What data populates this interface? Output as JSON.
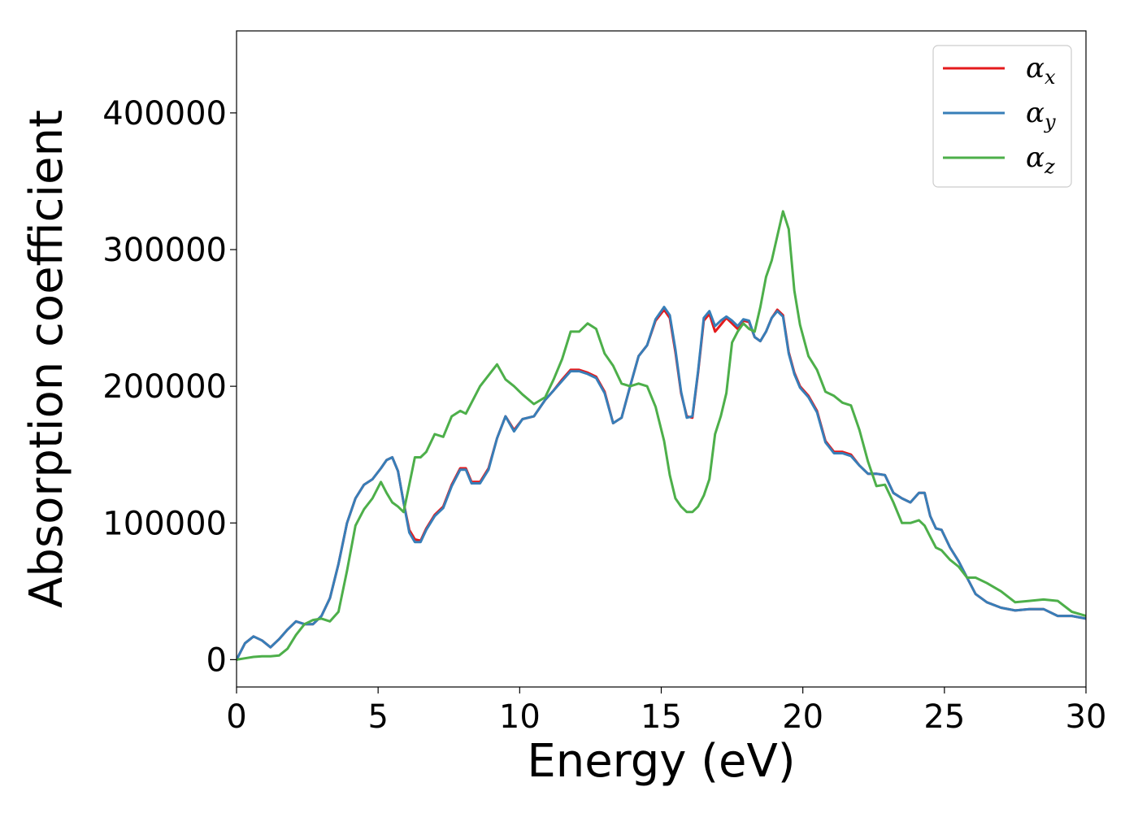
{
  "chart_data": {
    "type": "line",
    "title": "",
    "xlabel": "Energy (eV)",
    "ylabel": "Absorption coefficient",
    "xlim": [
      0,
      30
    ],
    "ylim": [
      -20000,
      460000
    ],
    "xticks": [
      0,
      5,
      10,
      15,
      20,
      25,
      30
    ],
    "yticks": [
      0,
      100000,
      200000,
      300000,
      400000
    ],
    "grid": false,
    "legend_position": "top-right",
    "series": [
      {
        "name": "α",
        "subscript": "x",
        "color": "#e41a1c",
        "x": [
          0,
          0.3,
          0.6,
          0.9,
          1.2,
          1.5,
          1.8,
          2.1,
          2.4,
          2.7,
          3.0,
          3.3,
          3.6,
          3.9,
          4.2,
          4.5,
          4.8,
          5.1,
          5.3,
          5.5,
          5.7,
          5.9,
          6.1,
          6.3,
          6.5,
          6.7,
          7.0,
          7.3,
          7.6,
          7.9,
          8.1,
          8.3,
          8.6,
          8.9,
          9.2,
          9.5,
          9.8,
          10.1,
          10.5,
          10.9,
          11.2,
          11.5,
          11.8,
          12.1,
          12.4,
          12.7,
          13.0,
          13.3,
          13.6,
          13.9,
          14.2,
          14.5,
          14.8,
          15.1,
          15.3,
          15.5,
          15.7,
          15.9,
          16.1,
          16.3,
          16.5,
          16.7,
          16.9,
          17.1,
          17.3,
          17.5,
          17.7,
          17.9,
          18.1,
          18.3,
          18.5,
          18.7,
          18.9,
          19.1,
          19.3,
          19.5,
          19.7,
          19.9,
          20.2,
          20.5,
          20.8,
          21.1,
          21.4,
          21.7,
          22.0,
          22.3,
          22.6,
          22.9,
          23.2,
          23.5,
          23.8,
          24.1,
          24.3,
          24.5,
          24.7,
          24.9,
          25.2,
          25.5,
          25.8,
          26.1,
          26.5,
          27.0,
          27.5,
          28.0,
          28.5,
          29.0,
          29.5,
          30.0
        ],
        "values": [
          0,
          12000,
          17000,
          14000,
          9000,
          15000,
          22000,
          28000,
          26000,
          26000,
          32000,
          45000,
          70000,
          100000,
          118000,
          128000,
          132000,
          140000,
          146000,
          148000,
          138000,
          115000,
          95000,
          88000,
          87000,
          96000,
          106000,
          112000,
          128000,
          140000,
          140000,
          130000,
          130000,
          140000,
          162000,
          178000,
          168000,
          176000,
          178000,
          190000,
          197000,
          205000,
          212000,
          212000,
          210000,
          207000,
          196000,
          173000,
          177000,
          200000,
          222000,
          230000,
          248000,
          256000,
          250000,
          225000,
          195000,
          178000,
          177000,
          210000,
          248000,
          253000,
          240000,
          245000,
          250000,
          246000,
          242000,
          248000,
          247000,
          236000,
          233000,
          240000,
          250000,
          256000,
          252000,
          225000,
          210000,
          200000,
          193000,
          182000,
          160000,
          152000,
          152000,
          150000,
          142000,
          136000,
          136000,
          135000,
          122000,
          118000,
          115000,
          122000,
          122000,
          105000,
          96000,
          95000,
          82000,
          72000,
          60000,
          48000,
          42000,
          38000,
          36000,
          37000,
          37000,
          32000,
          32000,
          30000
        ]
      },
      {
        "name": "α",
        "subscript": "y",
        "color": "#377eb8",
        "x": [
          0,
          0.3,
          0.6,
          0.9,
          1.2,
          1.5,
          1.8,
          2.1,
          2.4,
          2.7,
          3.0,
          3.3,
          3.6,
          3.9,
          4.2,
          4.5,
          4.8,
          5.1,
          5.3,
          5.5,
          5.7,
          5.9,
          6.1,
          6.3,
          6.5,
          6.7,
          7.0,
          7.3,
          7.6,
          7.9,
          8.1,
          8.3,
          8.6,
          8.9,
          9.2,
          9.5,
          9.8,
          10.1,
          10.5,
          10.9,
          11.2,
          11.5,
          11.8,
          12.1,
          12.4,
          12.7,
          13.0,
          13.3,
          13.6,
          13.9,
          14.2,
          14.5,
          14.8,
          15.1,
          15.3,
          15.5,
          15.7,
          15.9,
          16.1,
          16.3,
          16.5,
          16.7,
          16.9,
          17.1,
          17.3,
          17.5,
          17.7,
          17.9,
          18.1,
          18.3,
          18.5,
          18.7,
          18.9,
          19.1,
          19.3,
          19.5,
          19.7,
          19.9,
          20.2,
          20.5,
          20.8,
          21.1,
          21.4,
          21.7,
          22.0,
          22.3,
          22.6,
          22.9,
          23.2,
          23.5,
          23.8,
          24.1,
          24.3,
          24.5,
          24.7,
          24.9,
          25.2,
          25.5,
          25.8,
          26.1,
          26.5,
          27.0,
          27.5,
          28.0,
          28.5,
          29.0,
          29.5,
          30.0
        ],
        "values": [
          0,
          12000,
          17000,
          14000,
          9000,
          15000,
          22000,
          28000,
          26000,
          26000,
          32000,
          45000,
          70000,
          100000,
          118000,
          128000,
          132000,
          140000,
          146000,
          148000,
          138000,
          115000,
          93000,
          86000,
          86000,
          95000,
          105000,
          111000,
          127000,
          139000,
          139000,
          129000,
          129000,
          139000,
          162000,
          178000,
          167000,
          176000,
          178000,
          190000,
          197000,
          204000,
          211000,
          211000,
          209000,
          206000,
          195000,
          173000,
          177000,
          200000,
          222000,
          230000,
          249000,
          258000,
          252000,
          227000,
          196000,
          177000,
          178000,
          211000,
          250000,
          255000,
          244000,
          248000,
          251000,
          248000,
          244000,
          249000,
          248000,
          236000,
          233000,
          240000,
          250000,
          255000,
          251000,
          224000,
          209000,
          199000,
          192000,
          181000,
          159000,
          151000,
          151000,
          149000,
          142000,
          136000,
          136000,
          135000,
          122000,
          118000,
          115000,
          122000,
          122000,
          105000,
          96000,
          95000,
          82000,
          72000,
          60000,
          48000,
          42000,
          38000,
          36000,
          37000,
          37000,
          32000,
          32000,
          30000
        ]
      },
      {
        "name": "α",
        "subscript": "z",
        "color": "#4daf4a",
        "x": [
          0,
          0.3,
          0.6,
          0.9,
          1.2,
          1.5,
          1.8,
          2.1,
          2.4,
          2.7,
          3.0,
          3.3,
          3.6,
          3.9,
          4.2,
          4.5,
          4.8,
          5.1,
          5.3,
          5.5,
          5.7,
          5.9,
          6.1,
          6.3,
          6.5,
          6.7,
          7.0,
          7.3,
          7.6,
          7.9,
          8.1,
          8.3,
          8.6,
          8.9,
          9.2,
          9.5,
          9.8,
          10.1,
          10.5,
          10.9,
          11.2,
          11.5,
          11.8,
          12.1,
          12.4,
          12.7,
          13.0,
          13.3,
          13.6,
          13.9,
          14.2,
          14.5,
          14.8,
          15.1,
          15.3,
          15.5,
          15.7,
          15.9,
          16.1,
          16.3,
          16.5,
          16.7,
          16.9,
          17.1,
          17.3,
          17.5,
          17.7,
          17.9,
          18.1,
          18.3,
          18.5,
          18.7,
          18.9,
          19.1,
          19.3,
          19.5,
          19.7,
          19.9,
          20.2,
          20.5,
          20.8,
          21.1,
          21.4,
          21.7,
          22.0,
          22.3,
          22.6,
          22.9,
          23.2,
          23.5,
          23.8,
          24.1,
          24.3,
          24.5,
          24.7,
          24.9,
          25.2,
          25.5,
          25.8,
          26.1,
          26.5,
          27.0,
          27.5,
          28.0,
          28.5,
          29.0,
          29.5,
          30.0
        ],
        "values": [
          0,
          1000,
          2000,
          2500,
          2500,
          3000,
          8000,
          18000,
          26000,
          29000,
          30000,
          28000,
          35000,
          65000,
          98000,
          110000,
          118000,
          130000,
          122000,
          115000,
          112000,
          108000,
          128000,
          148000,
          148000,
          152000,
          165000,
          163000,
          178000,
          182000,
          180000,
          188000,
          200000,
          208000,
          216000,
          205000,
          200000,
          194000,
          187000,
          192000,
          205000,
          220000,
          240000,
          240000,
          246000,
          242000,
          224000,
          215000,
          202000,
          200000,
          202000,
          200000,
          185000,
          160000,
          135000,
          118000,
          112000,
          108000,
          108000,
          112000,
          120000,
          132000,
          165000,
          178000,
          195000,
          232000,
          240000,
          246000,
          242000,
          240000,
          258000,
          280000,
          292000,
          310000,
          328000,
          315000,
          270000,
          245000,
          222000,
          212000,
          196000,
          193000,
          188000,
          186000,
          168000,
          145000,
          127000,
          128000,
          115000,
          100000,
          100000,
          102000,
          98000,
          90000,
          82000,
          80000,
          73000,
          68000,
          60000,
          60000,
          56000,
          50000,
          42000,
          43000,
          44000,
          43000,
          35000,
          32000
        ]
      }
    ]
  }
}
